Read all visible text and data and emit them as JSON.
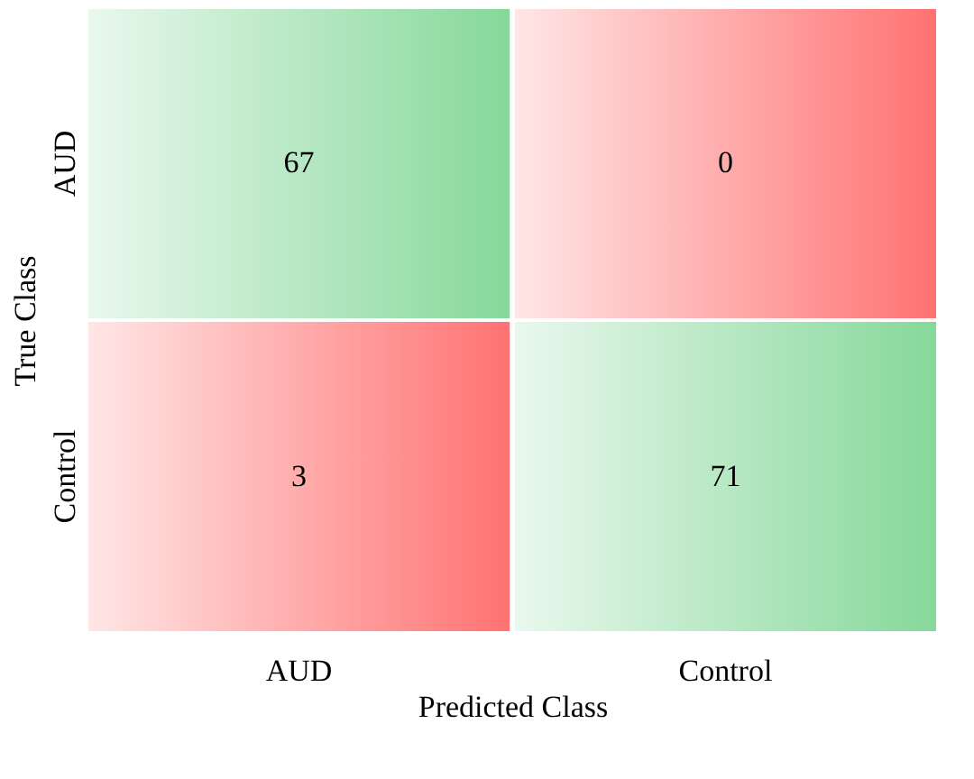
{
  "chart_data": {
    "type": "heatmap",
    "xlabel": "Predicted Class",
    "ylabel": "True Class",
    "categories": [
      "AUD",
      "Control"
    ],
    "y_categories": [
      "AUD",
      "Control"
    ],
    "cells": [
      [
        67,
        0
      ],
      [
        3,
        71
      ]
    ],
    "data_labels": true,
    "colors": [
      "#86d89a",
      "#ff7272",
      "#ff7272",
      "#86d89a"
    ]
  }
}
